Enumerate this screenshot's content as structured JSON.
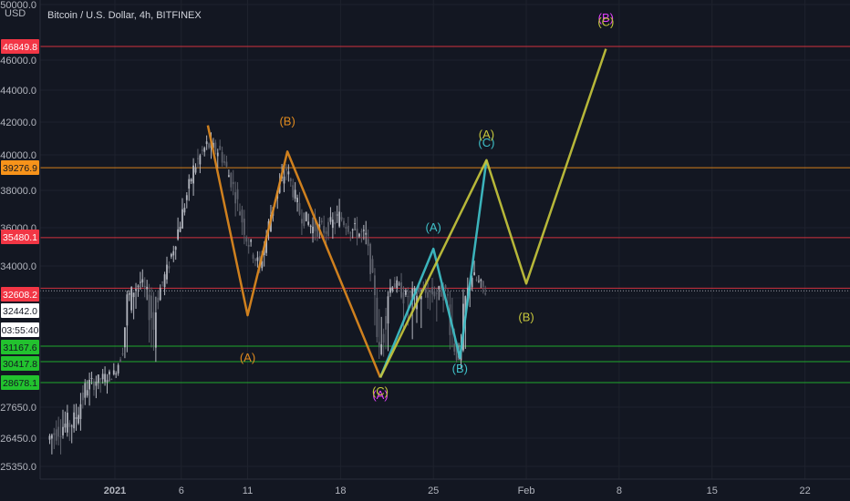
{
  "header": {
    "currency": "USD",
    "title": "Bitcoin / U.S. Dollar, 4h, BITFINEX"
  },
  "price_axis": {
    "ticks": [
      "50000.0",
      "46000.0",
      "44000.0",
      "42000.0",
      "40000.0",
      "38000.0",
      "36000.0",
      "34000.0",
      "32000.0",
      "27650.0",
      "26450.0",
      "25350.0"
    ]
  },
  "time_axis": {
    "ticks": [
      "2021",
      "6",
      "11",
      "18",
      "25",
      "Feb",
      "8",
      "15",
      "22"
    ]
  },
  "badges": [
    {
      "text": "46849.8",
      "bg": "#f23645",
      "fg": "#ffffff"
    },
    {
      "text": "39276.9",
      "bg": "#f7931a",
      "fg": "#131722"
    },
    {
      "text": "35480.1",
      "bg": "#f23645",
      "fg": "#ffffff"
    },
    {
      "text": "32608.2",
      "bg": "#f23645",
      "fg": "#ffffff"
    },
    {
      "text": "32442.0",
      "bg": "#ffffff",
      "fg": "#131722"
    },
    {
      "text": "03:55:40",
      "bg": "#ffffff",
      "fg": "#131722"
    },
    {
      "text": "31167.6",
      "bg": "#22c22e",
      "fg": "#131722"
    },
    {
      "text": "30417.8",
      "bg": "#22c22e",
      "fg": "#131722"
    },
    {
      "text": "28678.1",
      "bg": "#22c22e",
      "fg": "#131722"
    }
  ],
  "chart_data": {
    "type": "line",
    "instrument": "Bitcoin / U.S. Dollar, 4h, BITFINEX",
    "ylabel": "USD",
    "ylim": [
      25000,
      50500
    ],
    "horizontal_levels": [
      {
        "price": 46849.8,
        "color": "#f23645"
      },
      {
        "price": 39276.9,
        "color": "#f7931a"
      },
      {
        "price": 35480.1,
        "color": "#f23645"
      },
      {
        "price": 32608.2,
        "color": "#f23645"
      },
      {
        "price": 31167.6,
        "color": "#22c22e"
      },
      {
        "price": 30417.8,
        "color": "#22c22e"
      },
      {
        "price": 28678.1,
        "color": "#22c22e"
      }
    ],
    "series": [
      {
        "color": "#e08a1e",
        "points": [
          {
            "x": "2021-01-08",
            "y": 41800
          },
          {
            "x": "2021-01-11",
            "y": 31700
          },
          {
            "x": "2021-01-14",
            "y": 40200
          },
          {
            "x": "2021-01-21",
            "y": 29100
          }
        ]
      },
      {
        "color": "#3fc1c9",
        "points": [
          {
            "x": "2021-01-21",
            "y": 29100
          },
          {
            "x": "2021-01-25",
            "y": 34900
          },
          {
            "x": "2021-01-27",
            "y": 30600
          },
          {
            "x": "2021-01-29",
            "y": 39700
          }
        ]
      },
      {
        "color": "#c6c63c",
        "points": [
          {
            "x": "2021-01-21",
            "y": 29100
          },
          {
            "x": "2021-01-29",
            "y": 39700
          },
          {
            "x": "2021-02-01",
            "y": 32900
          },
          {
            "x": "2021-02-07",
            "y": 46700
          }
        ]
      }
    ],
    "wave_labels": [
      {
        "text": "(B)",
        "x": "2021-01-14",
        "y": 41800,
        "color": "#e08a1e"
      },
      {
        "text": "(A)",
        "x": "2021-01-11",
        "y": 30400,
        "color": "#e08a1e"
      },
      {
        "text": "(A)",
        "x": "2021-01-25",
        "y": 35800,
        "color": "#3fc1c9"
      },
      {
        "text": "(B)",
        "x": "2021-01-27",
        "y": 29500,
        "color": "#3fc1c9"
      },
      {
        "text": "(C)",
        "x": "2021-01-29",
        "y": 40500,
        "color": "#3fc1c9"
      },
      {
        "text": "(A)",
        "x": "2021-01-21",
        "y": 28000,
        "color": "#e040fb"
      },
      {
        "text": "(C)",
        "x": "2021-01-21",
        "y": 28150,
        "color": "#c6c63c"
      },
      {
        "text": "(A)",
        "x": "2021-01-29",
        "y": 41000,
        "color": "#c6c63c"
      },
      {
        "text": "(B)",
        "x": "2021-02-01",
        "y": 31600,
        "color": "#c6c63c"
      },
      {
        "text": "(B)",
        "x": "2021-02-07",
        "y": 48700,
        "color": "#e040fb"
      },
      {
        "text": "(C)",
        "x": "2021-02-07",
        "y": 48400,
        "color": "#c6c63c"
      }
    ],
    "candles_approx_close": [
      {
        "x": "2020-12-27",
        "y": 26400
      },
      {
        "x": "2020-12-28",
        "y": 26900
      },
      {
        "x": "2020-12-29",
        "y": 27100
      },
      {
        "x": "2020-12-30",
        "y": 28600
      },
      {
        "x": "2020-12-31",
        "y": 29000
      },
      {
        "x": "2021-01-01",
        "y": 29400
      },
      {
        "x": "2021-01-02",
        "y": 32000
      },
      {
        "x": "2021-01-03",
        "y": 33000
      },
      {
        "x": "2021-01-04",
        "y": 31500
      },
      {
        "x": "2021-01-05",
        "y": 33700
      },
      {
        "x": "2021-01-06",
        "y": 36300
      },
      {
        "x": "2021-01-07",
        "y": 39200
      },
      {
        "x": "2021-01-08",
        "y": 40600
      },
      {
        "x": "2021-01-09",
        "y": 40200
      },
      {
        "x": "2021-01-10",
        "y": 38200
      },
      {
        "x": "2021-01-11",
        "y": 35500
      },
      {
        "x": "2021-01-12",
        "y": 33900
      },
      {
        "x": "2021-01-13",
        "y": 37300
      },
      {
        "x": "2021-01-14",
        "y": 39200
      },
      {
        "x": "2021-01-15",
        "y": 36800
      },
      {
        "x": "2021-01-16",
        "y": 36000
      },
      {
        "x": "2021-01-17",
        "y": 35900
      },
      {
        "x": "2021-01-18",
        "y": 36600
      },
      {
        "x": "2021-01-19",
        "y": 35900
      },
      {
        "x": "2021-01-20",
        "y": 35500
      },
      {
        "x": "2021-01-21",
        "y": 30800
      },
      {
        "x": "2021-01-22",
        "y": 33000
      },
      {
        "x": "2021-01-23",
        "y": 32100
      },
      {
        "x": "2021-01-24",
        "y": 32300
      },
      {
        "x": "2021-01-25",
        "y": 32300
      },
      {
        "x": "2021-01-26",
        "y": 32400
      },
      {
        "x": "2021-01-27",
        "y": 30500
      },
      {
        "x": "2021-01-28",
        "y": 33400
      },
      {
        "x": "2021-01-29",
        "y": 32442
      }
    ]
  }
}
